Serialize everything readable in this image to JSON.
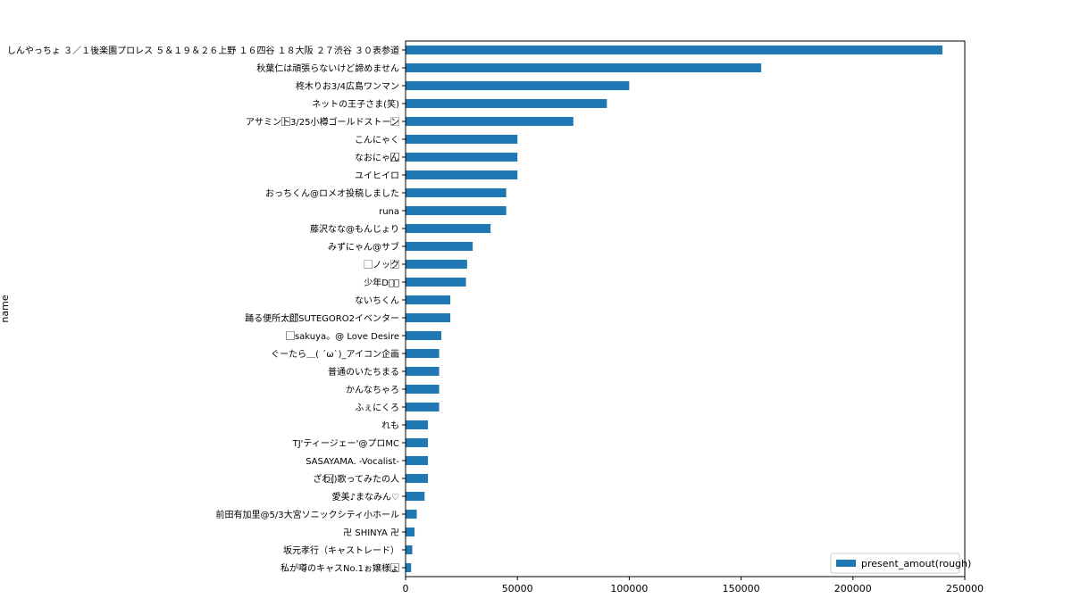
{
  "chart_data": {
    "type": "bar",
    "orientation": "horizontal",
    "xlabel": "",
    "ylabel": "name",
    "xlim": [
      0,
      250000
    ],
    "xticks": [
      0,
      50000,
      100000,
      150000,
      200000,
      250000
    ],
    "grid": false,
    "legend_position": "bottom-right",
    "bar_color": "#1f77b4",
    "series": [
      {
        "name": "present_amout(rough)",
        "color": "#1f77b4"
      }
    ],
    "categories": [
      "しんやっちょ ３／１後楽園プロレス ５＆１９＆２６上野 １６四谷 １８大阪 ２７渋谷 ３０表参道",
      "秋葉仁は頑張らないけど諦めません",
      "柊木りお3/4広島ワンマン",
      "ネットの王子さま(笑)",
      "アサミント⃞⃞3/25小樽ゴールドストーン⃞",
      "こんにゃく",
      "なおにゃん⃞⃞⃞⃞⃞",
      "ユイヒイロ",
      "おっちくん@ロメオ投稿しました",
      "runa",
      "藤沢なな@もんじょり",
      "みずにゃん@サブ",
      "⃞ノック⃞",
      "少年D⃞⃞",
      "ないちくん",
      "踊る便所太郎⃞SUTEGORO2イベンター",
      "⃞⃞sakuya。@ Love Desire",
      "ぐーたら＿( ´ω`)_アイコン企画",
      "普通のいたちまる",
      "かんなちゃろ",
      "ふぇにくろ",
      "れも",
      "TJ'ティージェー'@プロMC",
      "SASAYAMA. -Vocalist-",
      "ざわ(⃞⃞)歌ってみたの人",
      "愛美♪まなみん♡",
      "前田有加里@5/3大宮ソニックシティ小ホール",
      "卍 SHINYA 卍",
      "坂元孝行（キャストレード）",
      "私が噂のキャスNo.1ぉ嬢様ょ⃞⃞"
    ],
    "values": [
      240000,
      159000,
      100000,
      90000,
      75000,
      50000,
      50000,
      50000,
      45000,
      45000,
      38000,
      30000,
      27500,
      27000,
      20000,
      20000,
      16000,
      15000,
      15000,
      15000,
      15000,
      10000,
      10000,
      10000,
      10000,
      8500,
      5000,
      4000,
      3000,
      2500
    ]
  }
}
